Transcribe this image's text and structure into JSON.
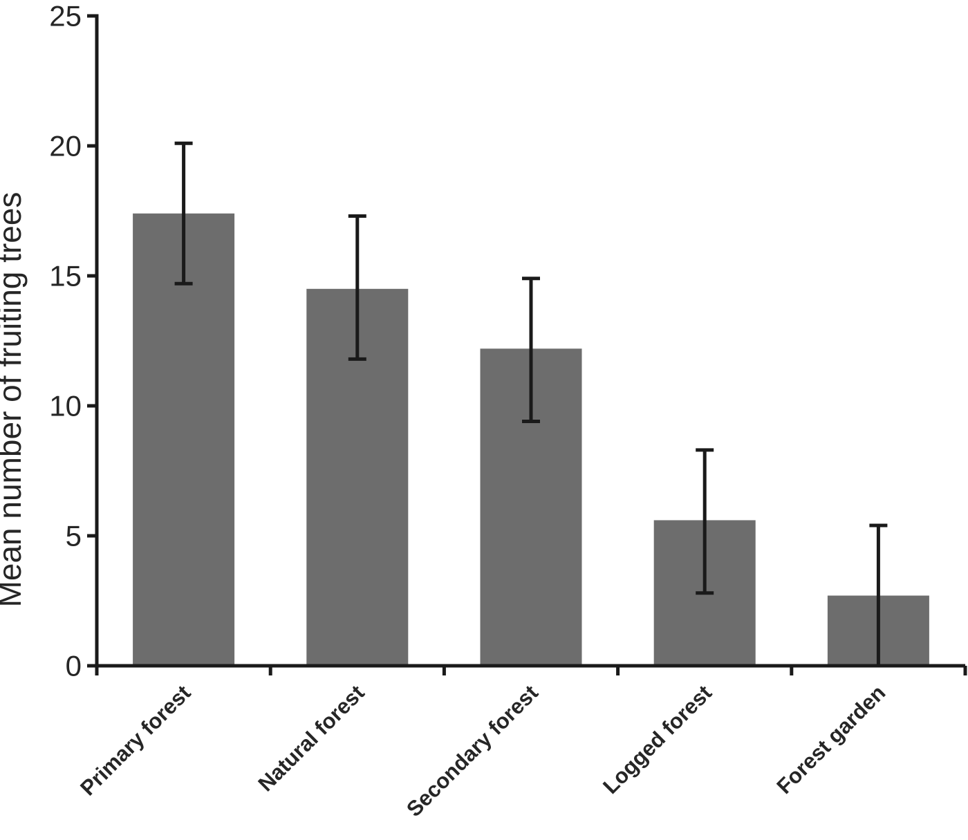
{
  "chart_data": {
    "type": "bar",
    "title": "",
    "ylabel": "Mean number of fruiting trees",
    "xlabel": "",
    "categories": [
      "Primary forest",
      "Natural forest",
      "Secondary forest",
      "Logged forest",
      "Forest garden"
    ],
    "values": [
      17.4,
      14.5,
      12.2,
      5.6,
      2.7
    ],
    "error_upper": [
      20.1,
      17.3,
      14.9,
      8.3,
      5.4
    ],
    "error_lower": [
      14.7,
      11.8,
      9.4,
      2.8,
      0
    ],
    "ylim": [
      0,
      25
    ],
    "yticks": [
      0,
      5,
      10,
      15,
      20,
      25
    ],
    "grid": false,
    "legend": "none",
    "colors": {
      "bar_fill": "#6d6d6d",
      "axis": "#1a1a1a",
      "error_bar": "#1a1a1a",
      "text": "#262626",
      "background": "#ffffff"
    }
  }
}
